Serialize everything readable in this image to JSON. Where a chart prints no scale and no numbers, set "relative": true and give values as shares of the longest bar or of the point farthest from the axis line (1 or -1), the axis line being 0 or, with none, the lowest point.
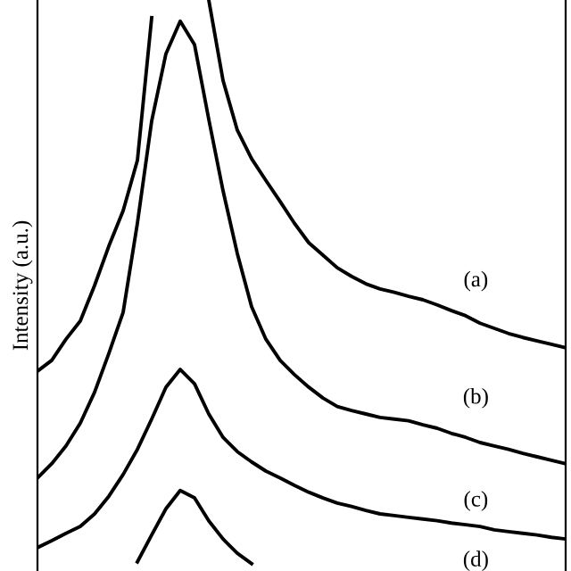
{
  "chart_data": {
    "type": "line",
    "relative": true,
    "ylabel": "Intensity (a.u.)",
    "grid": false,
    "legend": false,
    "marker": "none",
    "line_style": "solid",
    "categories": [
      null,
      null,
      null,
      null,
      null,
      null,
      null,
      null,
      null,
      null,
      null,
      null,
      null,
      null,
      null,
      null,
      null,
      null,
      null,
      null,
      null,
      null,
      null,
      null,
      null,
      null,
      null,
      null,
      null,
      null,
      null,
      null,
      null,
      null,
      null,
      null,
      null,
      null
    ],
    "series": [
      {
        "color": "#000000",
        "values": [
          0.35,
          0.369,
          0.406,
          0.438,
          0.5,
          0.569,
          0.631,
          0.719,
          0.969,
          null,
          null,
          null,
          1.0,
          0.859,
          0.772,
          0.722,
          0.684,
          0.647,
          0.609,
          0.575,
          0.553,
          0.531,
          0.516,
          0.503,
          0.494,
          0.488,
          0.481,
          0.475,
          0.466,
          0.456,
          0.447,
          0.434,
          0.425,
          0.416,
          0.409,
          0.403,
          0.397,
          0.391
        ]
      },
      {
        "color": "#000000",
        "values": [
          0.163,
          0.188,
          0.219,
          0.259,
          0.313,
          0.381,
          0.453,
          0.609,
          0.788,
          0.906,
          0.963,
          0.922,
          0.791,
          0.666,
          0.556,
          0.463,
          0.406,
          0.369,
          0.344,
          0.322,
          0.303,
          0.288,
          0.281,
          0.275,
          0.269,
          0.266,
          0.263,
          0.256,
          0.25,
          0.241,
          0.234,
          0.225,
          0.219,
          0.213,
          0.206,
          0.2,
          0.194,
          0.188
        ]
      },
      {
        "color": "#000000",
        "values": [
          0.041,
          0.053,
          0.066,
          0.078,
          0.1,
          0.131,
          0.169,
          0.213,
          0.266,
          0.322,
          0.353,
          0.328,
          0.275,
          0.234,
          0.209,
          0.191,
          0.175,
          0.163,
          0.15,
          0.138,
          0.128,
          0.119,
          0.113,
          0.106,
          0.1,
          0.097,
          0.094,
          0.091,
          0.088,
          0.084,
          0.081,
          0.078,
          0.072,
          0.069,
          0.066,
          0.063,
          0.059,
          0.056
        ]
      },
      {
        "color": "#000000",
        "values": [
          null,
          null,
          null,
          null,
          null,
          null,
          null,
          0.016,
          0.063,
          0.109,
          0.141,
          0.128,
          0.088,
          0.056,
          0.031,
          0.013,
          null,
          null,
          null,
          null,
          null,
          null,
          null,
          null,
          null,
          null,
          null,
          null,
          null,
          null,
          null,
          null,
          null,
          null,
          null,
          null,
          null,
          null
        ]
      }
    ],
    "annotations": [
      "(a)",
      "(b)",
      "(c)",
      "(d)"
    ]
  }
}
